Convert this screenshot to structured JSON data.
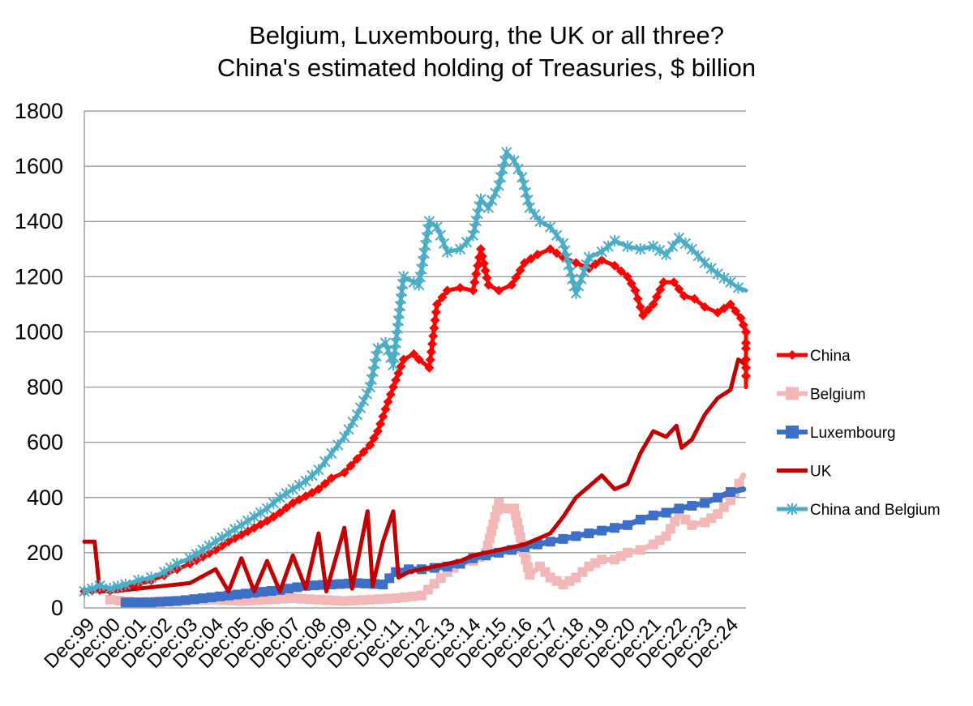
{
  "chart_data": {
    "type": "line",
    "title": [
      "Belgium, Luxembourg, the UK or all three?",
      "China's estimated holding of Treasuries, $ billion"
    ],
    "xlabel": "",
    "ylabel": "",
    "ylim": [
      0,
      1800
    ],
    "yticks": [
      0,
      200,
      400,
      600,
      800,
      1000,
      1200,
      1400,
      1600,
      1800
    ],
    "xlim": [
      1999.9,
      2025.6
    ],
    "xticks": [
      "Dec:99",
      "Dec:00",
      "Dec:01",
      "Dec:02",
      "Dec:03",
      "Dec:04",
      "Dec:05",
      "Dec:06",
      "Dec:07",
      "Dec:08",
      "Dec:09",
      "Dec:10",
      "Dec:11",
      "Dec:12",
      "Dec:13",
      "Dec:14",
      "Dec:15",
      "Dec:16",
      "Dec:17",
      "Dec:18",
      "Dec:19",
      "Dec:20",
      "Dec:21",
      "Dec:22",
      "Dec:23",
      "Dec:24"
    ],
    "grid": true,
    "legend": "right",
    "series": [
      {
        "name": "China",
        "color": "#ff0000",
        "marker": "diamond",
        "points": [
          [
            1999.9,
            60
          ],
          [
            2000.5,
            65
          ],
          [
            2000.9,
            62
          ],
          [
            2001.5,
            75
          ],
          [
            2002.0,
            85
          ],
          [
            2002.5,
            100
          ],
          [
            2003.0,
            118
          ],
          [
            2003.5,
            140
          ],
          [
            2004.0,
            160
          ],
          [
            2004.5,
            185
          ],
          [
            2005.0,
            210
          ],
          [
            2005.5,
            240
          ],
          [
            2006.0,
            265
          ],
          [
            2006.5,
            290
          ],
          [
            2007.0,
            315
          ],
          [
            2007.5,
            345
          ],
          [
            2008.0,
            380
          ],
          [
            2008.5,
            405
          ],
          [
            2009.0,
            430
          ],
          [
            2009.5,
            470
          ],
          [
            2010.0,
            490
          ],
          [
            2010.5,
            540
          ],
          [
            2011.0,
            590
          ],
          [
            2011.3,
            640
          ],
          [
            2011.6,
            720
          ],
          [
            2011.9,
            800
          ],
          [
            2012.3,
            900
          ],
          [
            2012.7,
            920
          ],
          [
            2012.9,
            900
          ],
          [
            2013.3,
            870
          ],
          [
            2013.6,
            1100
          ],
          [
            2014.0,
            1150
          ],
          [
            2014.5,
            1160
          ],
          [
            2015.0,
            1150
          ],
          [
            2015.3,
            1300
          ],
          [
            2015.6,
            1170
          ],
          [
            2016.0,
            1150
          ],
          [
            2016.5,
            1170
          ],
          [
            2017.0,
            1250
          ],
          [
            2017.5,
            1280
          ],
          [
            2018.0,
            1300
          ],
          [
            2018.5,
            1270
          ],
          [
            2019.0,
            1250
          ],
          [
            2019.5,
            1230
          ],
          [
            2020.0,
            1260
          ],
          [
            2020.5,
            1240
          ],
          [
            2021.0,
            1200
          ],
          [
            2021.3,
            1150
          ],
          [
            2021.6,
            1060
          ],
          [
            2022.0,
            1100
          ],
          [
            2022.4,
            1180
          ],
          [
            2022.8,
            1180
          ],
          [
            2023.2,
            1130
          ],
          [
            2023.6,
            1120
          ],
          [
            2024.0,
            1090
          ],
          [
            2024.5,
            1070
          ],
          [
            2025.0,
            1100
          ],
          [
            2025.4,
            1050
          ],
          [
            2025.6,
            1000
          ],
          [
            2025.6,
            960
          ],
          [
            2025.6,
            940
          ],
          [
            2025.6,
            900
          ],
          [
            2025.6,
            870
          ],
          [
            2025.6,
            840
          ],
          [
            2025.6,
            800
          ]
        ]
      },
      {
        "name": "Belgium",
        "color": "#f2b8b8",
        "marker": "square",
        "points": [
          [
            2000.9,
            30
          ],
          [
            2002.0,
            20
          ],
          [
            2003.0,
            25
          ],
          [
            2004.0,
            28
          ],
          [
            2005.0,
            30
          ],
          [
            2006.0,
            25
          ],
          [
            2007.0,
            30
          ],
          [
            2008.0,
            35
          ],
          [
            2009.0,
            30
          ],
          [
            2010.0,
            25
          ],
          [
            2011.0,
            30
          ],
          [
            2012.0,
            35
          ],
          [
            2013.0,
            45
          ],
          [
            2014.0,
            130
          ],
          [
            2014.5,
            160
          ],
          [
            2015.0,
            170
          ],
          [
            2015.5,
            200
          ],
          [
            2016.0,
            380
          ],
          [
            2016.3,
            360
          ],
          [
            2016.6,
            360
          ],
          [
            2016.9,
            230
          ],
          [
            2017.2,
            120
          ],
          [
            2017.6,
            150
          ],
          [
            2018.0,
            110
          ],
          [
            2018.5,
            85
          ],
          [
            2019.0,
            110
          ],
          [
            2019.5,
            150
          ],
          [
            2020.0,
            175
          ],
          [
            2020.5,
            175
          ],
          [
            2021.0,
            200
          ],
          [
            2021.5,
            210
          ],
          [
            2022.0,
            230
          ],
          [
            2022.5,
            260
          ],
          [
            2023.0,
            340
          ],
          [
            2023.5,
            300
          ],
          [
            2024.0,
            310
          ],
          [
            2024.5,
            340
          ],
          [
            2025.0,
            390
          ],
          [
            2025.5,
            480
          ]
        ]
      },
      {
        "name": "Luxembourg",
        "color": "#3d6fc7",
        "marker": "square",
        "points": [
          [
            2001.5,
            20
          ],
          [
            2002.5,
            20
          ],
          [
            2003.5,
            25
          ],
          [
            2004.5,
            35
          ],
          [
            2005.5,
            45
          ],
          [
            2006.5,
            55
          ],
          [
            2007.5,
            65
          ],
          [
            2008.5,
            80
          ],
          [
            2009.5,
            85
          ],
          [
            2010.5,
            90
          ],
          [
            2011.5,
            85
          ],
          [
            2012.0,
            130
          ],
          [
            2012.5,
            140
          ],
          [
            2013.0,
            140
          ],
          [
            2013.5,
            145
          ],
          [
            2014.0,
            150
          ],
          [
            2014.5,
            160
          ],
          [
            2015.0,
            180
          ],
          [
            2015.5,
            190
          ],
          [
            2016.0,
            200
          ],
          [
            2016.5,
            210
          ],
          [
            2017.0,
            220
          ],
          [
            2017.5,
            230
          ],
          [
            2018.0,
            240
          ],
          [
            2018.5,
            250
          ],
          [
            2019.0,
            260
          ],
          [
            2019.5,
            270
          ],
          [
            2020.0,
            280
          ],
          [
            2020.5,
            290
          ],
          [
            2021.0,
            300
          ],
          [
            2021.5,
            320
          ],
          [
            2022.0,
            335
          ],
          [
            2022.5,
            345
          ],
          [
            2023.0,
            360
          ],
          [
            2023.5,
            370
          ],
          [
            2024.0,
            380
          ],
          [
            2024.5,
            400
          ],
          [
            2025.0,
            420
          ],
          [
            2025.5,
            430
          ]
        ]
      },
      {
        "name": "UK",
        "color": "#c00000",
        "marker": "none",
        "points": [
          [
            1999.9,
            240
          ],
          [
            2000.3,
            240
          ],
          [
            2000.5,
            60
          ],
          [
            2001.0,
            60
          ],
          [
            2002.0,
            70
          ],
          [
            2003.0,
            80
          ],
          [
            2004.0,
            90
          ],
          [
            2005.0,
            140
          ],
          [
            2005.5,
            60
          ],
          [
            2006.0,
            180
          ],
          [
            2006.5,
            60
          ],
          [
            2007.0,
            170
          ],
          [
            2007.5,
            60
          ],
          [
            2008.0,
            190
          ],
          [
            2008.5,
            70
          ],
          [
            2009.0,
            270
          ],
          [
            2009.3,
            60
          ],
          [
            2010.0,
            290
          ],
          [
            2010.3,
            70
          ],
          [
            2010.9,
            350
          ],
          [
            2011.1,
            80
          ],
          [
            2011.5,
            240
          ],
          [
            2011.9,
            350
          ],
          [
            2012.1,
            110
          ],
          [
            2012.5,
            130
          ],
          [
            2013.0,
            140
          ],
          [
            2013.5,
            150
          ],
          [
            2014.0,
            160
          ],
          [
            2014.5,
            170
          ],
          [
            2015.0,
            190
          ],
          [
            2015.5,
            200
          ],
          [
            2016.0,
            210
          ],
          [
            2016.5,
            220
          ],
          [
            2017.0,
            230
          ],
          [
            2017.5,
            250
          ],
          [
            2018.0,
            270
          ],
          [
            2018.5,
            330
          ],
          [
            2019.0,
            400
          ],
          [
            2019.5,
            440
          ],
          [
            2020.0,
            480
          ],
          [
            2020.5,
            430
          ],
          [
            2021.0,
            450
          ],
          [
            2021.5,
            560
          ],
          [
            2022.0,
            640
          ],
          [
            2022.5,
            620
          ],
          [
            2022.9,
            660
          ],
          [
            2023.1,
            580
          ],
          [
            2023.5,
            610
          ],
          [
            2024.0,
            700
          ],
          [
            2024.5,
            760
          ],
          [
            2025.0,
            790
          ],
          [
            2025.3,
            900
          ],
          [
            2025.6,
            880
          ]
        ]
      },
      {
        "name": "China and Belgium",
        "color": "#4bacc6",
        "marker": "star",
        "points": [
          [
            1999.9,
            60
          ],
          [
            2000.5,
            80
          ],
          [
            2000.9,
            70
          ],
          [
            2001.5,
            85
          ],
          [
            2002.0,
            100
          ],
          [
            2002.5,
            110
          ],
          [
            2003.0,
            130
          ],
          [
            2003.5,
            160
          ],
          [
            2004.0,
            180
          ],
          [
            2004.5,
            210
          ],
          [
            2005.0,
            240
          ],
          [
            2005.5,
            270
          ],
          [
            2006.0,
            300
          ],
          [
            2006.5,
            330
          ],
          [
            2007.0,
            360
          ],
          [
            2007.5,
            400
          ],
          [
            2008.0,
            430
          ],
          [
            2008.5,
            460
          ],
          [
            2009.0,
            500
          ],
          [
            2009.5,
            560
          ],
          [
            2010.0,
            620
          ],
          [
            2010.5,
            700
          ],
          [
            2011.0,
            800
          ],
          [
            2011.3,
            940
          ],
          [
            2011.6,
            960
          ],
          [
            2011.9,
            880
          ],
          [
            2012.3,
            1200
          ],
          [
            2012.7,
            1180
          ],
          [
            2012.9,
            1170
          ],
          [
            2013.3,
            1400
          ],
          [
            2013.6,
            1380
          ],
          [
            2014.0,
            1290
          ],
          [
            2014.5,
            1300
          ],
          [
            2015.0,
            1350
          ],
          [
            2015.3,
            1480
          ],
          [
            2015.6,
            1450
          ],
          [
            2016.0,
            1530
          ],
          [
            2016.3,
            1650
          ],
          [
            2016.6,
            1620
          ],
          [
            2016.9,
            1560
          ],
          [
            2017.2,
            1450
          ],
          [
            2017.6,
            1400
          ],
          [
            2018.0,
            1380
          ],
          [
            2018.5,
            1320
          ],
          [
            2019.0,
            1140
          ],
          [
            2019.5,
            1270
          ],
          [
            2020.0,
            1290
          ],
          [
            2020.5,
            1330
          ],
          [
            2021.0,
            1310
          ],
          [
            2021.5,
            1300
          ],
          [
            2022.0,
            1310
          ],
          [
            2022.5,
            1280
          ],
          [
            2023.0,
            1340
          ],
          [
            2023.5,
            1300
          ],
          [
            2024.0,
            1250
          ],
          [
            2024.5,
            1210
          ],
          [
            2025.0,
            1180
          ],
          [
            2025.3,
            1160
          ],
          [
            2025.6,
            1150
          ]
        ]
      }
    ]
  }
}
